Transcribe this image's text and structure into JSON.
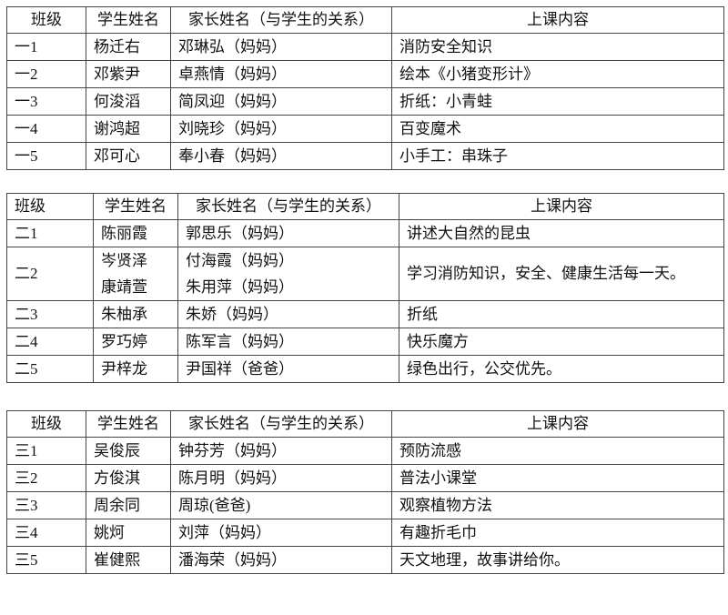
{
  "headers": [
    "班级",
    "学生姓名",
    "家长姓名（与学生的关系）",
    "上课内容"
  ],
  "tables": [
    {
      "rows": [
        {
          "class": "一1",
          "students": [
            "杨迁右"
          ],
          "parents": [
            "邓琳弘（妈妈）"
          ],
          "content": "消防安全知识"
        },
        {
          "class": "一2",
          "students": [
            "邓紫尹"
          ],
          "parents": [
            "卓燕情（妈妈）"
          ],
          "content": "绘本《小猪变形计》"
        },
        {
          "class": "一3",
          "students": [
            "何浚滔"
          ],
          "parents": [
            "简凤迎（妈妈）"
          ],
          "content": "折纸：小青蛙"
        },
        {
          "class": "一4",
          "students": [
            "谢鸿超"
          ],
          "parents": [
            "刘晓珍（妈妈）"
          ],
          "content": "百变魔术"
        },
        {
          "class": "一5",
          "students": [
            "邓可心"
          ],
          "parents": [
            "奉小春（妈妈）"
          ],
          "content": "小手工：串珠子"
        }
      ]
    },
    {
      "rows": [
        {
          "class": "二1",
          "students": [
            "陈丽霞"
          ],
          "parents": [
            "郭思乐（妈妈）"
          ],
          "content": "讲述大自然的昆虫"
        },
        {
          "class": "二2",
          "students": [
            "岑贤泽",
            "康靖萱"
          ],
          "parents": [
            "付海霞（妈妈）",
            "朱用萍（妈妈）"
          ],
          "content": "学习消防知识，安全、健康生活每一天。"
        },
        {
          "class": "二3",
          "students": [
            "朱柚承"
          ],
          "parents": [
            "朱娇（妈妈）"
          ],
          "content": "折纸"
        },
        {
          "class": "二4",
          "students": [
            "罗巧婷"
          ],
          "parents": [
            "陈军言（妈妈）"
          ],
          "content": "快乐魔方"
        },
        {
          "class": "二5",
          "students": [
            "尹梓龙"
          ],
          "parents": [
            "尹国祥（爸爸）"
          ],
          "content": "绿色出行，公交优先。"
        }
      ]
    },
    {
      "rows": [
        {
          "class": "三1",
          "students": [
            "吴俊辰"
          ],
          "parents": [
            "钟芬芳（妈妈）"
          ],
          "content": "预防流感"
        },
        {
          "class": "三2",
          "students": [
            "方俊淇"
          ],
          "parents": [
            "陈月明（妈妈）"
          ],
          "content": "普法小课堂"
        },
        {
          "class": "三3",
          "students": [
            "周余同"
          ],
          "parents": [
            "周琼(爸爸)"
          ],
          "content": "观察植物方法"
        },
        {
          "class": "三4",
          "students": [
            "姚炣"
          ],
          "parents": [
            "刘萍（妈妈）"
          ],
          "content": "有趣折毛巾"
        },
        {
          "class": "三5",
          "students": [
            "崔健熙"
          ],
          "parents": [
            "潘海荣（妈妈）"
          ],
          "content": "天文地理，故事讲给你。"
        }
      ]
    }
  ]
}
